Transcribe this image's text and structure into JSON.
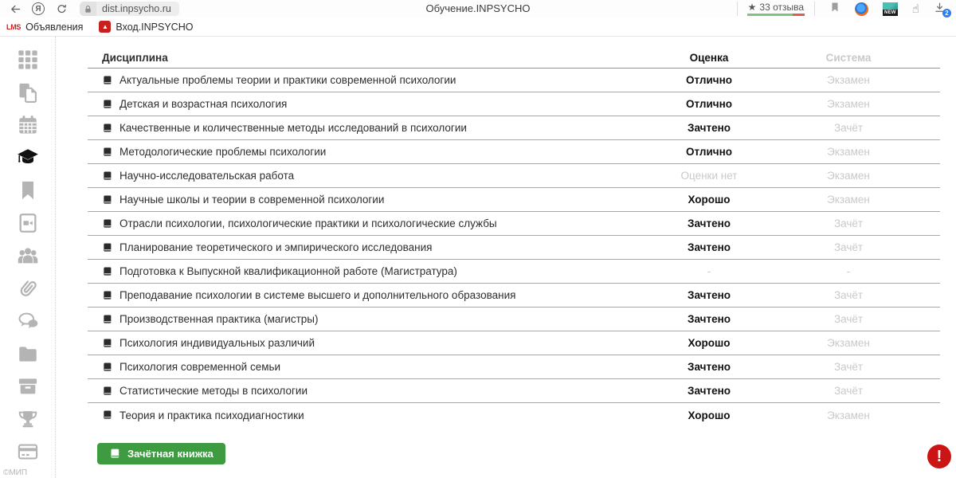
{
  "browser": {
    "logo_letter": "Я",
    "url": "dist.inpsycho.ru",
    "page_title": "Обучение.INPSYCHO",
    "reviews": {
      "star": "★",
      "label": "33 отзыва"
    },
    "new_badge": "NEW",
    "hand_glyph": "☝",
    "download_badge": "2"
  },
  "bookmarks": [
    {
      "favicon": "LMS",
      "label": "Объявления"
    },
    {
      "favicon": "▲",
      "label": "Вход.INPSYCHO"
    }
  ],
  "sidebar": {
    "items": [
      {
        "icon": "grid-icon",
        "active": false
      },
      {
        "icon": "documents-icon",
        "active": false
      },
      {
        "icon": "calendar-icon",
        "active": false
      },
      {
        "icon": "graduation-cap-icon",
        "active": true
      },
      {
        "icon": "bookmark-icon",
        "active": false
      },
      {
        "icon": "video-file-icon",
        "active": false
      },
      {
        "icon": "users-icon",
        "active": false
      },
      {
        "icon": "paperclip-icon",
        "active": false
      },
      {
        "icon": "chat-icon",
        "active": false
      },
      {
        "icon": "folder-icon",
        "active": false
      },
      {
        "icon": "archive-icon",
        "active": false
      },
      {
        "icon": "trophy-icon",
        "active": false
      },
      {
        "icon": "credit-card-icon",
        "active": false
      }
    ],
    "footer": "©МИП"
  },
  "table": {
    "headers": {
      "discipline": "Дисциплина",
      "grade": "Оценка",
      "system": "Система"
    },
    "no_grade_values": [
      "Оценки нет",
      "-"
    ],
    "rows": [
      {
        "discipline": "Актуальные проблемы теории и практики современной психологии",
        "grade": "Отлично",
        "system": "Экзамен"
      },
      {
        "discipline": "Детская и возрастная психология",
        "grade": "Отлично",
        "system": "Экзамен"
      },
      {
        "discipline": "Качественные и количественные методы исследований в психологии",
        "grade": "Зачтено",
        "system": "Зачёт"
      },
      {
        "discipline": "Методологические проблемы психологии",
        "grade": "Отлично",
        "system": "Экзамен"
      },
      {
        "discipline": "Научно-исследовательская работа",
        "grade": "Оценки нет",
        "system": "Экзамен"
      },
      {
        "discipline": "Научные школы и теории в современной психологии",
        "grade": "Хорошо",
        "system": "Экзамен"
      },
      {
        "discipline": "Отрасли психологии, психологические практики и психологические службы",
        "grade": "Зачтено",
        "system": "Зачёт"
      },
      {
        "discipline": "Планирование теоретического и эмпирического исследования",
        "grade": "Зачтено",
        "system": "Зачёт"
      },
      {
        "discipline": "Подготовка к Выпускной квалификационной работе (Магистратура)",
        "grade": "-",
        "system": "-"
      },
      {
        "discipline": "Преподавание психологии в системе высшего и дополнительного образования",
        "grade": "Зачтено",
        "system": "Зачёт"
      },
      {
        "discipline": "Производственная практика (магистры)",
        "grade": "Зачтено",
        "system": "Зачёт"
      },
      {
        "discipline": "Психология индивидуальных различий",
        "grade": "Хорошо",
        "system": "Экзамен"
      },
      {
        "discipline": "Психология современной семьи",
        "grade": "Зачтено",
        "system": "Зачёт"
      },
      {
        "discipline": "Статистические методы в психологии",
        "grade": "Зачтено",
        "system": "Зачёт"
      },
      {
        "discipline": "Теория и практика психодиагностики",
        "grade": "Хорошо",
        "system": "Экзамен"
      }
    ]
  },
  "footer": {
    "gradebook_button_label": "Зачётная книжка",
    "alert_glyph": "!"
  },
  "colors": {
    "button_green": "#3e9b41",
    "alert_red": "#cb1414",
    "muted_gray": "#c9c9c9"
  }
}
